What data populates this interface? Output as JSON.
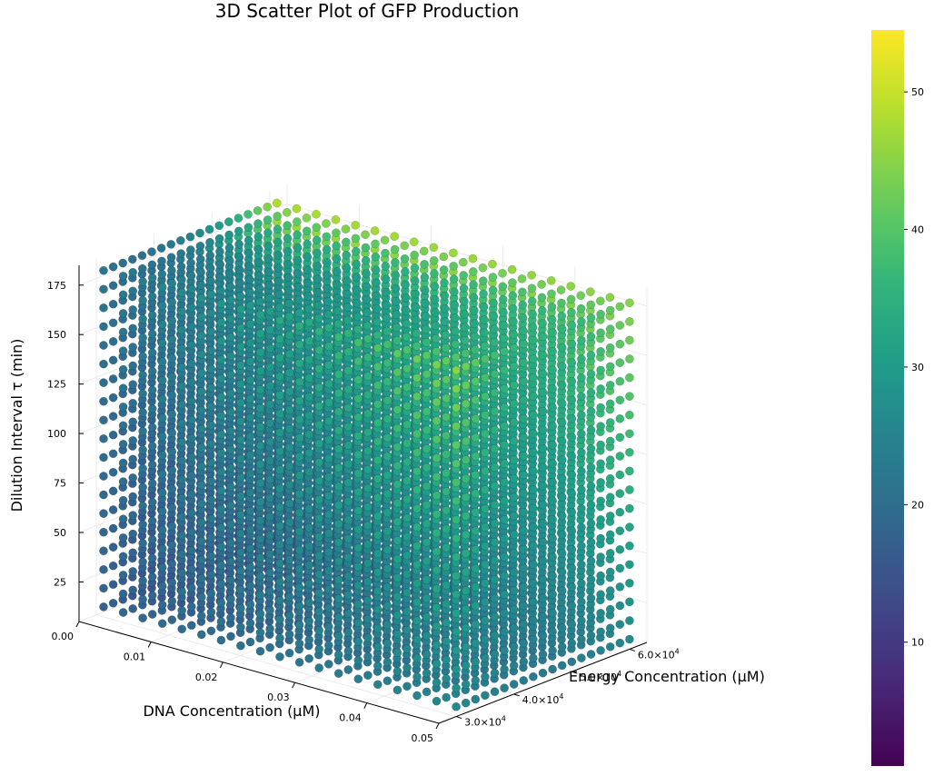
{
  "chart_data": {
    "type": "scatter",
    "title": "3D Scatter Plot of GFP Production",
    "xlabel": "DNA Concentration (µM)",
    "ylabel": "Energy Concentration (µM)",
    "zlabel": "Dilution Interval τ (min)",
    "x_ticks": [
      "0.00",
      "0.01",
      "0.02",
      "0.03",
      "0.04",
      "0.05"
    ],
    "x_tick_values": [
      0.0,
      0.01,
      0.02,
      0.03,
      0.04,
      0.05
    ],
    "y_ticks": [
      {
        "base": "3.0×10",
        "exp": "4"
      },
      {
        "base": "4.0×10",
        "exp": "4"
      },
      {
        "base": "5.0×10",
        "exp": "4"
      },
      {
        "base": "6.0×10",
        "exp": "4"
      }
    ],
    "y_tick_values": [
      30000,
      40000,
      50000,
      60000
    ],
    "z_ticks": [
      "25",
      "50",
      "75",
      "100",
      "125",
      "150",
      "175"
    ],
    "z_tick_values": [
      25,
      50,
      75,
      100,
      125,
      150,
      175
    ],
    "xlim": [
      0.0,
      0.05
    ],
    "ylim": [
      27000,
      63000
    ],
    "zlim": [
      5,
      185
    ],
    "grid": {
      "x_count": 19,
      "y_count": 19,
      "z_count": 19
    },
    "x_range": [
      0.001,
      0.05
    ],
    "y_range": [
      30000,
      60000
    ],
    "z_range": [
      10,
      180
    ],
    "colorbar": {
      "colormap": "viridis",
      "range": [
        1,
        54.5
      ],
      "ticks": [
        "10",
        "20",
        "30",
        "40",
        "50"
      ],
      "tick_values": [
        10,
        20,
        30,
        40,
        50
      ]
    },
    "value_model": "GFP production over grid of DNA concentration, energy concentration and dilution interval; lowest (~1) at low DNA, low energy, short interval; highest (~54) at low DNA, high energy, long interval; ~20 in the interior",
    "legend": "none"
  }
}
